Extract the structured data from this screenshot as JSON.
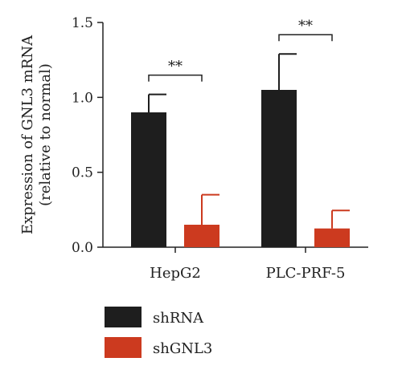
{
  "chart_data": {
    "type": "bar",
    "categories": [
      "HepG2",
      "PLC-PRF-5"
    ],
    "series": [
      {
        "name": "shRNA",
        "values": [
          0.9,
          1.05
        ],
        "errors": [
          0.12,
          0.24
        ],
        "color": "#1e1e1e"
      },
      {
        "name": "shGNL3",
        "values": [
          0.15,
          0.125
        ],
        "errors": [
          0.2,
          0.12
        ],
        "color": "#cc3a1f"
      }
    ],
    "ylabel_lines": [
      "Expression of GNL3 mRNA",
      "(relative to normal)"
    ],
    "ylim": [
      0,
      1.5
    ],
    "yticks": [
      "0.0",
      "0.5",
      "1.0",
      "1.5"
    ],
    "significance": [
      "**",
      "**"
    ],
    "legend_position": "bottom-left",
    "grid": false
  }
}
